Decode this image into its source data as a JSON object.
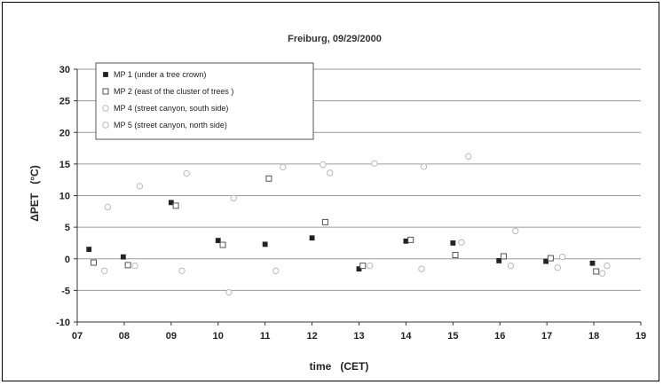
{
  "chart_data": {
    "type": "scatter",
    "title": "Freiburg, 09/29/2000",
    "xlabel": "time   (CET)",
    "ylabel": "ΔPET   (°C)",
    "xlim": [
      7,
      19
    ],
    "ylim": [
      -10,
      30
    ],
    "x_ticks": [
      7,
      8,
      9,
      10,
      11,
      12,
      13,
      14,
      15,
      16,
      17,
      18,
      19
    ],
    "x_tick_labels": [
      "07",
      "08",
      "09",
      "10",
      "11",
      "12",
      "13",
      "14",
      "15",
      "16",
      "17",
      "18",
      "19"
    ],
    "y_ticks": [
      -10,
      -5,
      0,
      5,
      10,
      15,
      20,
      25,
      30
    ],
    "y_tick_labels": [
      "-10",
      "-5",
      "0",
      "5",
      "10",
      "15",
      "20",
      "25",
      "30"
    ],
    "grid": "horizontal",
    "legend_position": "top-left",
    "series": [
      {
        "name": "MP 1 (under a tree crown)",
        "marker": "filled-square",
        "color": "#222222",
        "points": [
          [
            7.25,
            1.5
          ],
          [
            7.98,
            0.3
          ],
          [
            9.0,
            8.9
          ],
          [
            10.0,
            2.9
          ],
          [
            11.0,
            2.3
          ],
          [
            12.0,
            3.3
          ],
          [
            13.0,
            -1.6
          ],
          [
            14.0,
            2.8
          ],
          [
            15.0,
            2.5
          ],
          [
            15.98,
            -0.3
          ],
          [
            16.98,
            -0.4
          ],
          [
            17.97,
            -0.7
          ]
        ]
      },
      {
        "name": "MP 2 (east of the cluster of trees )",
        "marker": "open-square",
        "color": "#555555",
        "points": [
          [
            7.35,
            -0.6
          ],
          [
            8.08,
            -1.0
          ],
          [
            9.1,
            8.4
          ],
          [
            10.1,
            2.2
          ],
          [
            11.08,
            12.7
          ],
          [
            12.28,
            5.8
          ],
          [
            13.08,
            -1.1
          ],
          [
            14.1,
            3.0
          ],
          [
            15.05,
            0.6
          ],
          [
            16.08,
            0.4
          ],
          [
            17.08,
            0.1
          ],
          [
            18.05,
            -2.0
          ]
        ]
      },
      {
        "name": "MP 4 (street canyon, south side)",
        "marker": "open-circle",
        "color": "#bbbbbb",
        "points": [
          [
            7.58,
            -1.9
          ],
          [
            8.23,
            -1.1
          ],
          [
            9.23,
            -1.9
          ],
          [
            10.23,
            -5.3
          ],
          [
            11.23,
            -1.9
          ],
          [
            12.23,
            14.9
          ],
          [
            13.23,
            -1.1
          ],
          [
            14.33,
            -1.6
          ],
          [
            15.18,
            2.6
          ],
          [
            16.23,
            -1.1
          ],
          [
            17.23,
            -1.4
          ],
          [
            18.18,
            -2.3
          ]
        ]
      },
      {
        "name": "MP 5 (street canyon, north side)",
        "marker": "open-circle",
        "color": "#bbbbbb",
        "points": [
          [
            7.65,
            8.2
          ],
          [
            8.33,
            11.5
          ],
          [
            9.33,
            13.5
          ],
          [
            10.33,
            9.6
          ],
          [
            11.38,
            14.5
          ],
          [
            12.38,
            13.6
          ],
          [
            13.33,
            15.1
          ],
          [
            14.38,
            14.6
          ],
          [
            15.33,
            16.2
          ],
          [
            16.33,
            4.4
          ],
          [
            17.33,
            0.3
          ],
          [
            18.28,
            -1.1
          ]
        ]
      }
    ]
  }
}
